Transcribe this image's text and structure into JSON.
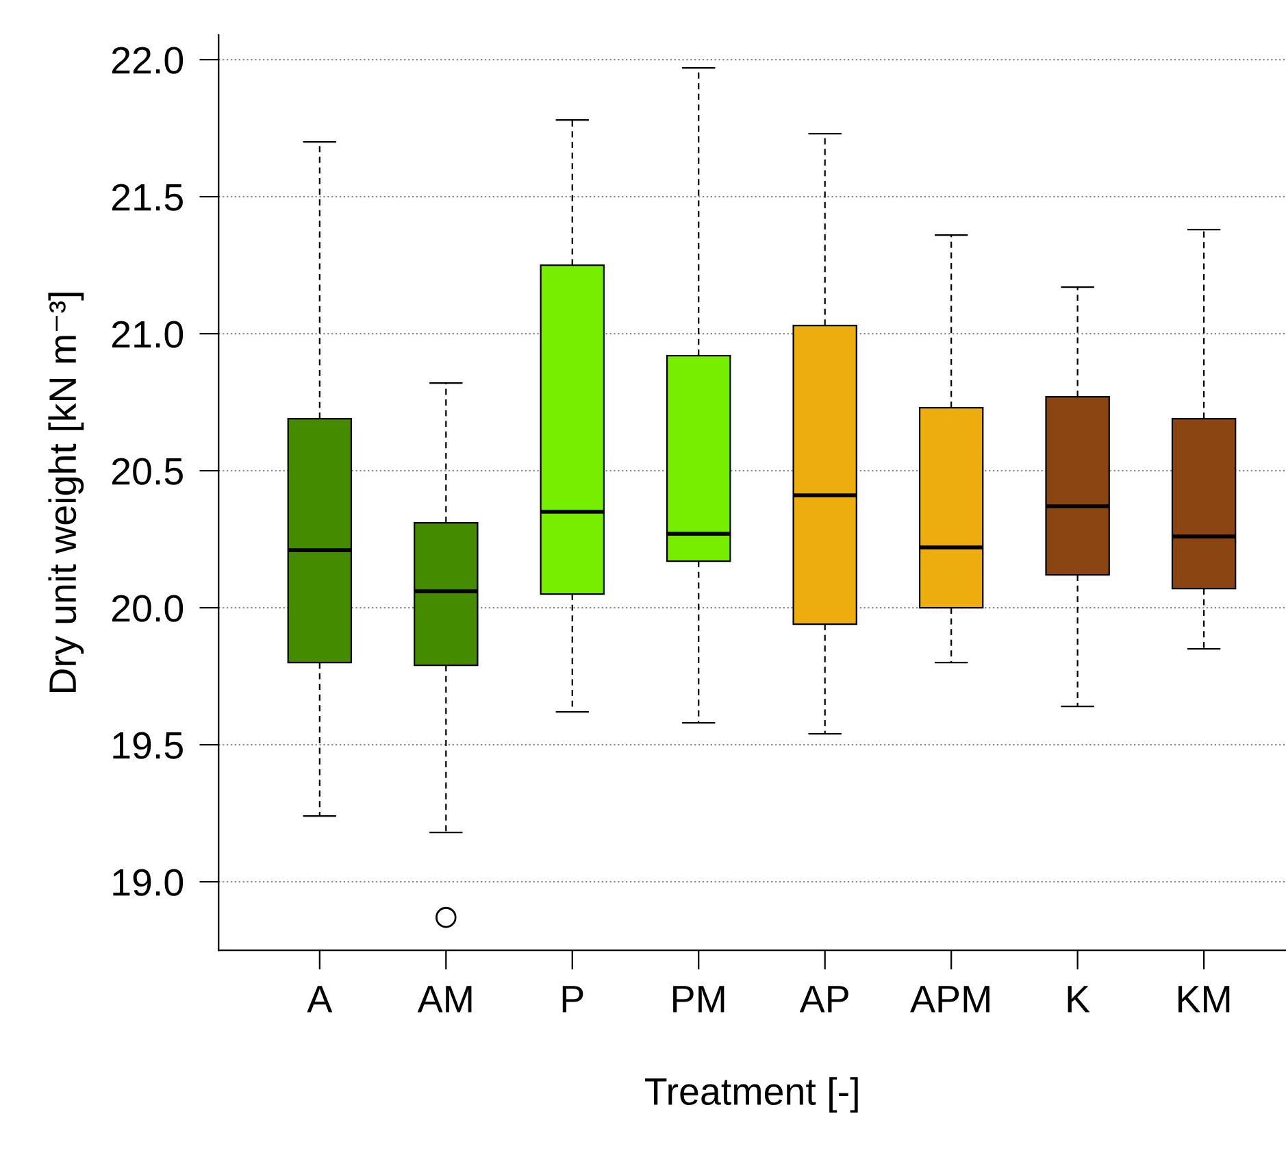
{
  "chart_data": {
    "type": "box",
    "xlabel": "Treatment [-]",
    "ylabel": "Dry unit weight [kN m⁻³]",
    "categories": [
      "A",
      "AM",
      "P",
      "PM",
      "AP",
      "APM",
      "K",
      "KM"
    ],
    "colors": [
      "#458b00",
      "#458b00",
      "#76ee00",
      "#76ee00",
      "#eead0e",
      "#eead0e",
      "#8b4513",
      "#8b4513"
    ],
    "boxes": [
      {
        "low": 19.24,
        "q1": 19.8,
        "median": 20.21,
        "q3": 20.69,
        "high": 21.7
      },
      {
        "low": 19.18,
        "q1": 19.79,
        "median": 20.06,
        "q3": 20.31,
        "high": 20.82,
        "outliers": [
          18.87
        ]
      },
      {
        "low": 19.62,
        "q1": 20.05,
        "median": 20.35,
        "q3": 21.25,
        "high": 21.78
      },
      {
        "low": 19.58,
        "q1": 20.17,
        "median": 20.27,
        "q3": 20.92,
        "high": 21.97
      },
      {
        "low": 19.54,
        "q1": 19.94,
        "median": 20.41,
        "q3": 21.03,
        "high": 21.73
      },
      {
        "low": 19.8,
        "q1": 20.0,
        "median": 20.22,
        "q3": 20.73,
        "high": 21.36
      },
      {
        "low": 19.64,
        "q1": 20.12,
        "median": 20.37,
        "q3": 20.77,
        "high": 21.17
      },
      {
        "low": 19.85,
        "q1": 20.07,
        "median": 20.26,
        "q3": 20.69,
        "high": 21.38
      }
    ],
    "ylim": [
      18.75,
      22.09
    ],
    "yticks": [
      {
        "value": 19,
        "label": "19.0"
      },
      {
        "value": 19.5,
        "label": "19.5"
      },
      {
        "value": 20,
        "label": "20.0"
      },
      {
        "value": 20.5,
        "label": "20.5"
      },
      {
        "value": 21,
        "label": "21.0"
      },
      {
        "value": 21.5,
        "label": "21.5"
      },
      {
        "value": 22,
        "label": "22.0"
      }
    ],
    "grid": "y",
    "legend": false
  }
}
